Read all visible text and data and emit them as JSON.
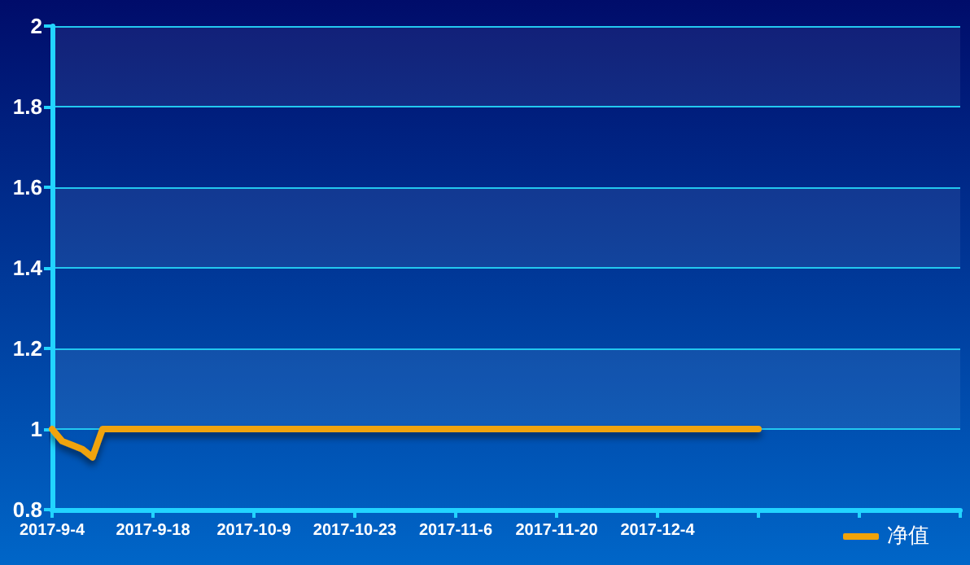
{
  "chart_data": {
    "type": "line",
    "categories": [
      "2017-9-4",
      null,
      null,
      null,
      null,
      null,
      null,
      null,
      null,
      null,
      "2017-9-18",
      null,
      null,
      null,
      null,
      null,
      null,
      null,
      null,
      null,
      "2017-10-9",
      null,
      null,
      null,
      null,
      null,
      null,
      null,
      null,
      null,
      "2017-10-23",
      null,
      null,
      null,
      null,
      null,
      null,
      null,
      null,
      null,
      "2017-11-6",
      null,
      null,
      null,
      null,
      null,
      null,
      null,
      null,
      null,
      "2017-11-20",
      null,
      null,
      null,
      null,
      null,
      null,
      null,
      null,
      null,
      "2017-12-4",
      null,
      null,
      null,
      null,
      null,
      null,
      null,
      null,
      null,
      null,
      null,
      null,
      null,
      null,
      null,
      null,
      null,
      null,
      null,
      null,
      null,
      null,
      null,
      null,
      null,
      null,
      null,
      null,
      null,
      null
    ],
    "series": [
      {
        "name": "净值",
        "color": "#f0a30a",
        "values": [
          1,
          0.97,
          0.96,
          0.95,
          0.93,
          1,
          1,
          1,
          1,
          1,
          1,
          1,
          1,
          1,
          1,
          1,
          1,
          1,
          1,
          1,
          1,
          1,
          1,
          1,
          1,
          1,
          1,
          1,
          1,
          1,
          1,
          1,
          1,
          1,
          1,
          1,
          1,
          1,
          1,
          1,
          1,
          1,
          1,
          1,
          1,
          1,
          1,
          1,
          1,
          1,
          1,
          1,
          1,
          1,
          1,
          1,
          1,
          1,
          1,
          1,
          1,
          1,
          1,
          1,
          1,
          1,
          1,
          1,
          1,
          1,
          1,
          null,
          null,
          null,
          null,
          null,
          null,
          null,
          null,
          null,
          null,
          null,
          null,
          null,
          null,
          null,
          null,
          null,
          null,
          null,
          null
        ]
      }
    ],
    "ylim": [
      0.8,
      2
    ],
    "yticks": [
      0.8,
      1,
      1.2,
      1.4,
      1.6,
      1.8,
      2
    ],
    "grid": "y",
    "legend": "bottom right",
    "marker": "none",
    "line_style": "solid"
  }
}
